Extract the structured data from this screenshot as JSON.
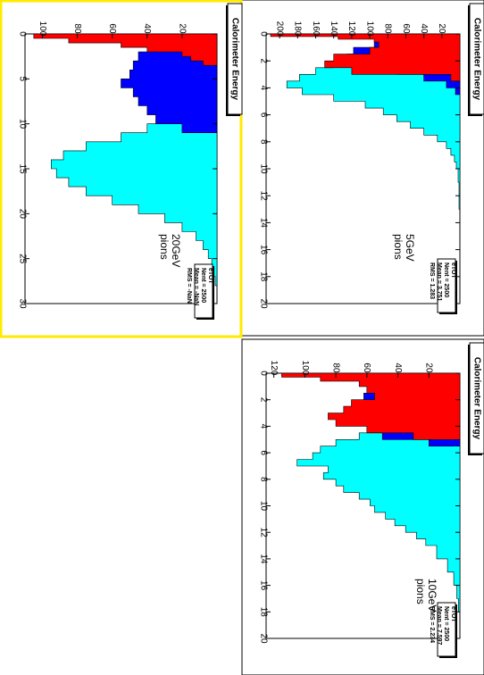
{
  "colors": {
    "total": "#00ffff",
    "em": "#0000ff",
    "had": "#ff0000",
    "selected_border": "#ffeb00"
  },
  "chart_data": [
    {
      "type": "bar",
      "title": "Calorimeter Energy",
      "xlim": [
        0,
        20
      ],
      "ylim": [
        0,
        215
      ],
      "x_ticks": [
        "0",
        "2",
        "4",
        "6",
        "8",
        "10",
        "12",
        "14",
        "16",
        "18",
        "20"
      ],
      "y_ticks": [
        "20",
        "40",
        "60",
        "80",
        "100",
        "120",
        "140",
        "160",
        "180",
        "200"
      ],
      "annotation": [
        "5GeV",
        "pions"
      ],
      "stats": {
        "name": "eTOT",
        "entries": "Nent = 2500",
        "mean": "Mean = 3.751",
        "rms": "RMS = 1.283"
      },
      "series": [
        {
          "kind": "total",
          "x": [
            0,
            0.5,
            1,
            1.5,
            2,
            2.5,
            3,
            3.5,
            4,
            4.5,
            5,
            5.5,
            6,
            6.5,
            7,
            7.5,
            8,
            8.5,
            9,
            9.5,
            10,
            11,
            12,
            13
          ],
          "values": [
            20,
            45,
            85,
            110,
            140,
            160,
            178,
            192,
            175,
            140,
            105,
            85,
            70,
            55,
            40,
            25,
            15,
            10,
            6,
            4,
            2,
            1,
            1,
            0
          ]
        },
        {
          "kind": "em",
          "x": [
            0,
            0.5,
            1,
            1.5,
            2,
            2.5,
            3,
            3.5,
            4
          ],
          "values": [
            60,
            95,
            118,
            125,
            110,
            70,
            40,
            15,
            5
          ]
        },
        {
          "kind": "had",
          "x": [
            0,
            0.2,
            0.4,
            0.6,
            1,
            1.5,
            2,
            2.5,
            3
          ],
          "values": [
            210,
            135,
            95,
            90,
            100,
            140,
            150,
            120,
            10
          ]
        }
      ]
    },
    {
      "type": "bar",
      "title": "Calorimeter Energy",
      "xlim": [
        0,
        20
      ],
      "ylim": [
        0,
        125
      ],
      "x_ticks": [
        "0",
        "2",
        "4",
        "6",
        "8",
        "10",
        "12",
        "14",
        "16",
        "18",
        "20"
      ],
      "y_ticks": [
        "20",
        "40",
        "60",
        "80",
        "100",
        "120"
      ],
      "annotation": [
        "10GeV",
        "pions"
      ],
      "stats": {
        "name": "eTOT",
        "entries": "Nent = 2500",
        "mean": "Mean = 7.597",
        "rms": "RMS = 2.234"
      },
      "series": [
        {
          "kind": "total",
          "x": [
            0,
            1,
            2,
            3,
            4,
            4.5,
            5,
            5.5,
            6,
            6.5,
            7,
            7.5,
            8,
            8.5,
            9,
            9.5,
            10,
            10.5,
            11,
            11.5,
            12,
            12.5,
            13,
            14,
            15,
            16,
            17
          ],
          "values": [
            20,
            35,
            50,
            60,
            55,
            65,
            80,
            90,
            95,
            105,
            85,
            88,
            80,
            75,
            65,
            58,
            55,
            48,
            42,
            35,
            28,
            22,
            15,
            8,
            4,
            2,
            1
          ]
        },
        {
          "kind": "em",
          "x": [
            0,
            0.5,
            1,
            1.5,
            2,
            2.5,
            3,
            3.5,
            4,
            4.5,
            5
          ],
          "values": [
            45,
            60,
            60,
            62,
            60,
            65,
            60,
            58,
            55,
            50,
            20
          ]
        },
        {
          "kind": "had",
          "x": [
            0,
            0.3,
            0.6,
            1,
            1.5,
            2,
            2.5,
            3,
            3.5,
            4,
            4.5
          ],
          "values": [
            115,
            90,
            65,
            60,
            55,
            70,
            75,
            85,
            80,
            60,
            30
          ]
        }
      ]
    },
    {
      "type": "bar",
      "title": "Calorimeter Energy",
      "xlim": [
        0,
        30
      ],
      "ylim": [
        0,
        110
      ],
      "x_ticks": [
        "0",
        "5",
        "10",
        "15",
        "20",
        "25",
        "30"
      ],
      "y_ticks": [
        "20",
        "40",
        "60",
        "80",
        "100"
      ],
      "annotation": [
        "20GeV",
        "pions"
      ],
      "stats": {
        "name": "eTOT",
        "entries": "Nent = 2500",
        "mean": "Mean = -NaN",
        "rms": "RMS = -NaN"
      },
      "series": [
        {
          "kind": "total",
          "x": [
            0,
            1,
            2,
            3,
            4,
            5,
            6,
            7,
            8,
            9,
            10,
            11,
            12,
            13,
            14,
            15,
            16,
            17,
            18,
            19,
            20,
            21,
            22,
            23,
            24,
            25,
            26,
            27,
            28,
            29
          ],
          "values": [
            15,
            25,
            25,
            25,
            28,
            30,
            30,
            30,
            32,
            35,
            40,
            55,
            75,
            88,
            95,
            92,
            85,
            75,
            60,
            45,
            30,
            20,
            12,
            8,
            5,
            3,
            2,
            1,
            0,
            0
          ]
        },
        {
          "kind": "em",
          "x": [
            0,
            1,
            2,
            3,
            4,
            5,
            6,
            7,
            8,
            9,
            10
          ],
          "values": [
            25,
            40,
            45,
            48,
            50,
            55,
            48,
            45,
            40,
            35,
            20
          ]
        },
        {
          "kind": "had",
          "x": [
            0,
            0.5,
            1,
            1.5,
            2,
            2.5,
            3
          ],
          "values": [
            105,
            85,
            55,
            40,
            20,
            15,
            8
          ]
        }
      ]
    }
  ]
}
